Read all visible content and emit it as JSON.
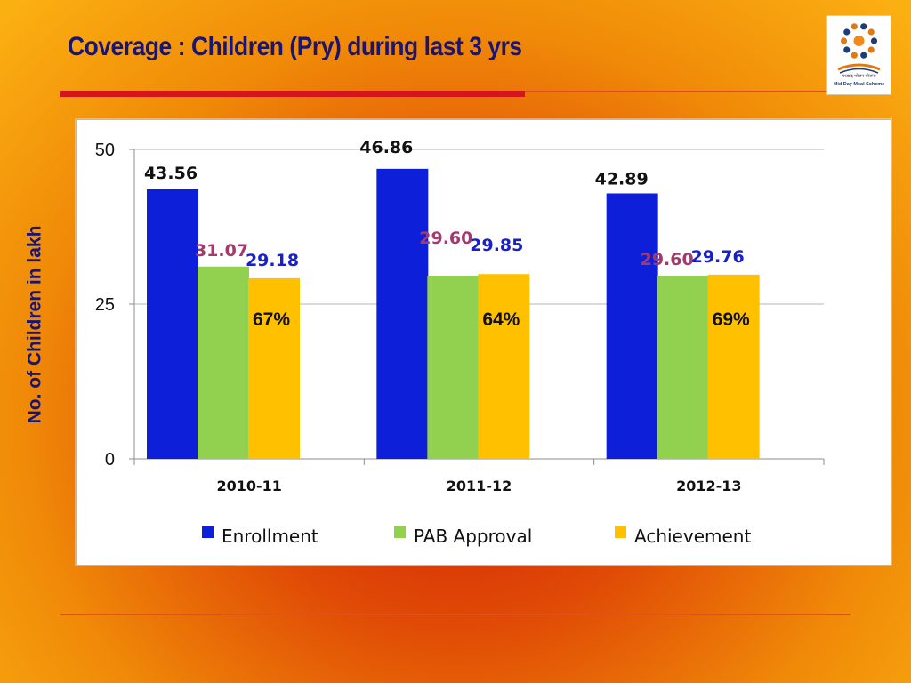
{
  "slide": {
    "title": "Coverage : Children (Pry) during last 3 yrs",
    "logo": {
      "icon": "mid-day-meal-logo",
      "text_hindi": "मध्याह्न भोजन योजना",
      "text_english": "Mid Day Meal Scheme"
    }
  },
  "chart_data": {
    "type": "bar",
    "title": "",
    "xlabel": "",
    "ylabel": "No. of Children in lakh",
    "categories": [
      "2010-11",
      "2011-12",
      "2012-13"
    ],
    "series": [
      {
        "name": "Enrollment",
        "values": [
          43.56,
          46.86,
          42.89
        ],
        "color": "#0d1fd9",
        "label_color": "#111111",
        "labels": [
          "43.56",
          "46.86",
          "42.89"
        ]
      },
      {
        "name": "PAB Approval",
        "values": [
          31.07,
          29.6,
          29.6
        ],
        "color": "#92d050",
        "label_color": "#a33a6e",
        "labels": [
          "31.07",
          "29.60",
          "29.60"
        ]
      },
      {
        "name": "Achievement",
        "values": [
          29.18,
          29.85,
          29.76
        ],
        "color": "#ffc000",
        "label_color": "#1a20c8",
        "labels": [
          "29.18",
          "29.85",
          "29.76"
        ]
      }
    ],
    "annotations": [
      "67%",
      "64%",
      "69%"
    ],
    "ylim": [
      0,
      50
    ],
    "yticks": [
      "0",
      "25",
      "50"
    ],
    "grid": true,
    "legend": "bottom"
  }
}
